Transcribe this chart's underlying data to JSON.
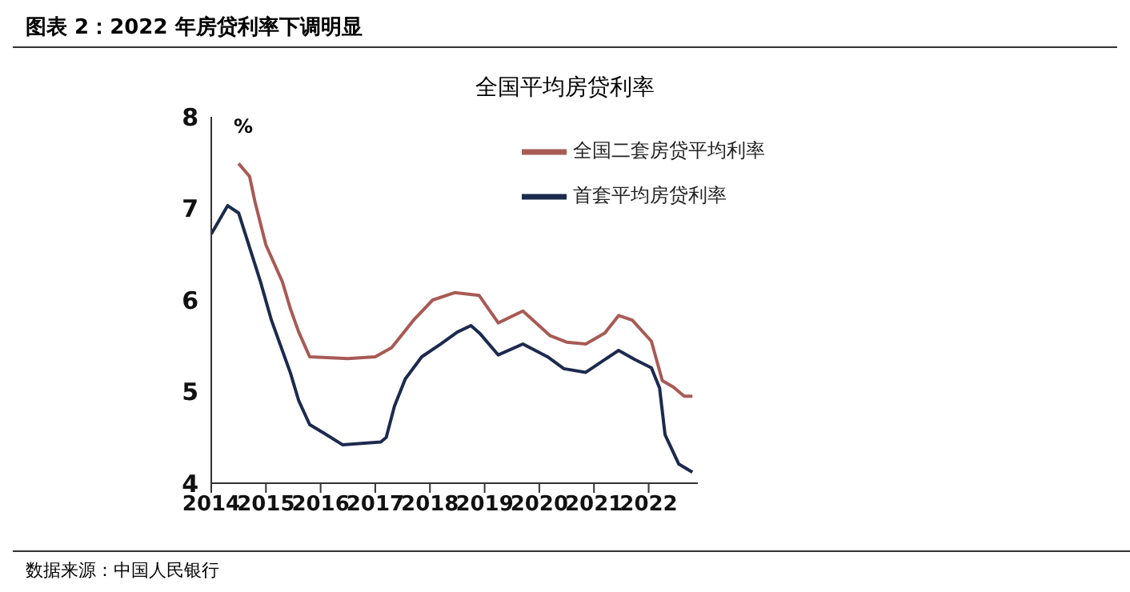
{
  "chart_data": {
    "type": "line",
    "title": "图表 2：2022 年房贷利率下调明显",
    "subtitle": "全国平均房贷利率",
    "ylabel": "%",
    "annotations": [
      "数据来源：中国人民银行"
    ],
    "series": [
      {
        "name": "首套平均房贷利率",
        "color": "#1c2a4e",
        "x": [
          2014.0,
          2014.3,
          2014.5,
          2014.9,
          2015.1,
          2015.45,
          2015.6,
          2015.8,
          2016.05,
          2016.4,
          2017.1,
          2017.2,
          2017.35,
          2017.55,
          2017.85,
          2018.2,
          2018.5,
          2018.75,
          2018.92,
          2019.25,
          2019.7,
          2020.15,
          2020.45,
          2020.85,
          2021.2,
          2021.45,
          2021.75,
          2022.05,
          2022.2,
          2022.3,
          2022.55,
          2022.8
        ],
        "values": [
          6.72,
          7.03,
          6.95,
          6.2,
          5.78,
          5.2,
          4.9,
          4.64,
          4.55,
          4.42,
          4.45,
          4.5,
          4.84,
          5.14,
          5.38,
          5.52,
          5.65,
          5.72,
          5.63,
          5.4,
          5.52,
          5.38,
          5.25,
          5.21,
          5.35,
          5.45,
          5.35,
          5.26,
          5.04,
          4.53,
          4.21,
          4.12
        ]
      },
      {
        "name": "全国二套房贷平均利率",
        "color": "#a85a55",
        "x": [
          2014.5,
          2014.7,
          2014.8,
          2015.0,
          2015.3,
          2015.45,
          2015.6,
          2015.8,
          2016.5,
          2017.0,
          2017.3,
          2017.7,
          2018.05,
          2018.45,
          2018.9,
          2019.25,
          2019.7,
          2020.2,
          2020.5,
          2020.85,
          2021.2,
          2021.45,
          2021.7,
          2022.05,
          2022.25,
          2022.45,
          2022.65,
          2022.8
        ],
        "values": [
          7.49,
          7.35,
          7.07,
          6.6,
          6.2,
          5.9,
          5.65,
          5.38,
          5.36,
          5.38,
          5.48,
          5.78,
          6.0,
          6.08,
          6.05,
          5.75,
          5.88,
          5.61,
          5.54,
          5.52,
          5.64,
          5.83,
          5.78,
          5.55,
          5.12,
          5.05,
          4.95,
          4.95
        ]
      }
    ],
    "xlim": [
      2014,
      2022.9
    ],
    "xticks": [
      2014,
      2015,
      2016,
      2017,
      2018,
      2019,
      2020,
      2021,
      2022
    ],
    "ylim": [
      4,
      8
    ],
    "yticks": [
      4,
      5,
      6,
      7,
      8
    ],
    "legend": "top right",
    "marker": "none",
    "line_style": "solid"
  }
}
